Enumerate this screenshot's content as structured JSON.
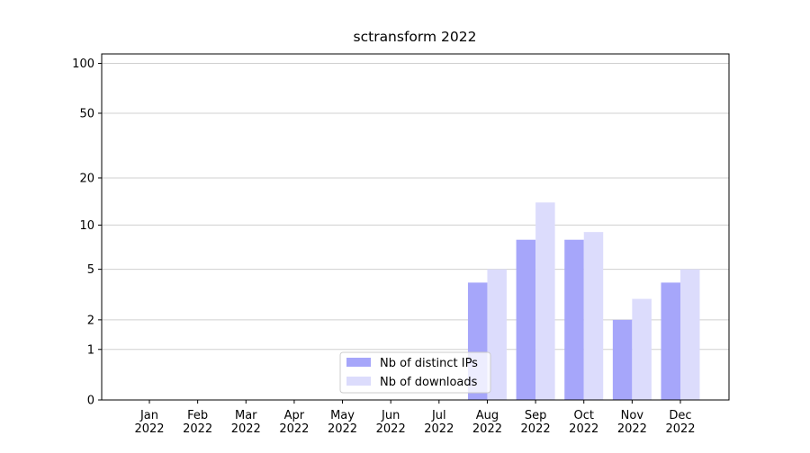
{
  "chart_data": {
    "type": "bar",
    "title": "sctransform 2022",
    "categories": [
      "Jan 2022",
      "Feb 2022",
      "Mar 2022",
      "Apr 2022",
      "May 2022",
      "Jun 2022",
      "Jul 2022",
      "Aug 2022",
      "Sep 2022",
      "Oct 2022",
      "Nov 2022",
      "Dec 2022"
    ],
    "series": [
      {
        "name": "Nb of distinct IPs",
        "color": "#a6a6fa",
        "values": [
          0,
          0,
          0,
          0,
          0,
          0,
          0,
          4,
          8,
          8,
          2,
          4
        ]
      },
      {
        "name": "Nb of downloads",
        "color": "#dcdcfc",
        "values": [
          0,
          0,
          0,
          0,
          0,
          0,
          0,
          5,
          14,
          9,
          3,
          5
        ]
      }
    ],
    "yscale": "log1p",
    "ylim": [
      0,
      114
    ],
    "yticks": [
      0,
      1,
      2,
      5,
      10,
      20,
      50,
      100
    ],
    "grid": true,
    "legend": "lower center"
  }
}
